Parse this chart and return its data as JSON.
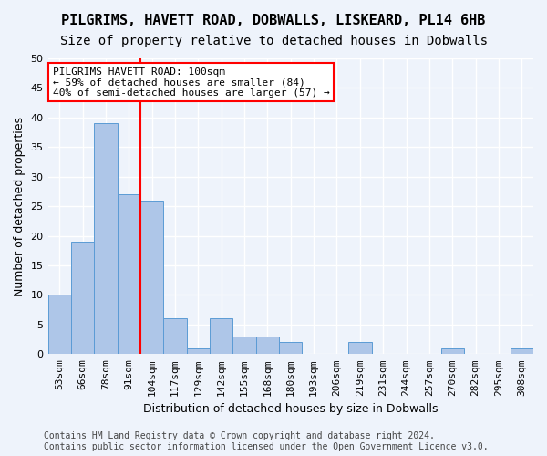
{
  "title": "PILGRIMS, HAVETT ROAD, DOBWALLS, LISKEARD, PL14 6HB",
  "subtitle": "Size of property relative to detached houses in Dobwalls",
  "xlabel": "Distribution of detached houses by size in Dobwalls",
  "ylabel": "Number of detached properties",
  "bar_values": [
    10,
    19,
    39,
    27,
    26,
    6,
    1,
    6,
    3,
    3,
    2,
    0,
    0,
    2,
    0,
    0,
    0,
    1,
    0,
    0,
    1
  ],
  "bar_labels": [
    "53sqm",
    "66sqm",
    "78sqm",
    "91sqm",
    "104sqm",
    "117sqm",
    "129sqm",
    "142sqm",
    "155sqm",
    "168sqm",
    "180sqm",
    "193sqm",
    "206sqm",
    "219sqm",
    "231sqm",
    "244sqm",
    "257sqm",
    "270sqm",
    "282sqm",
    "295sqm",
    "308sqm"
  ],
  "bar_color": "#aec6e8",
  "bar_edge_color": "#5b9bd5",
  "vline_x": 3.5,
  "vline_color": "red",
  "annotation_text": "PILGRIMS HAVETT ROAD: 100sqm\n← 59% of detached houses are smaller (84)\n40% of semi-detached houses are larger (57) →",
  "annotation_box_color": "white",
  "annotation_box_edge": "red",
  "ylim": [
    0,
    50
  ],
  "yticks": [
    0,
    5,
    10,
    15,
    20,
    25,
    30,
    35,
    40,
    45,
    50
  ],
  "footer": "Contains HM Land Registry data © Crown copyright and database right 2024.\nContains public sector information licensed under the Open Government Licence v3.0.",
  "bg_color": "#eef3fb",
  "grid_color": "#ffffff",
  "title_fontsize": 11,
  "subtitle_fontsize": 10,
  "axis_label_fontsize": 9,
  "tick_fontsize": 8,
  "annotation_fontsize": 8,
  "footer_fontsize": 7
}
